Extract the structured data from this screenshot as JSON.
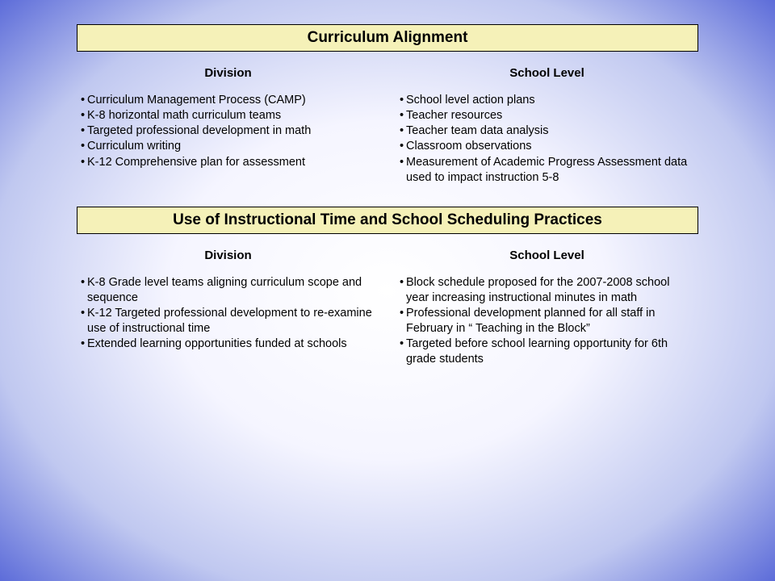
{
  "section1": {
    "title": "Curriculum Alignment",
    "left": {
      "header": "Division",
      "items": [
        "Curriculum Management Process (CAMP)",
        "K-8 horizontal math curriculum teams",
        "Targeted professional development in math",
        "Curriculum writing",
        "K-12 Comprehensive plan for assessment"
      ]
    },
    "right": {
      "header": "School Level",
      "items": [
        "School level action plans",
        "Teacher resources",
        "Teacher team data analysis",
        "Classroom observations",
        "Measurement of Academic Progress Assessment data used to impact instruction 5-8"
      ]
    }
  },
  "section2": {
    "title": "Use of Instructional Time and School Scheduling Practices",
    "left": {
      "header": "Division",
      "items": [
        "K-8 Grade level teams aligning curriculum scope and sequence",
        "K-12 Targeted professional development to re-examine use of instructional time",
        "Extended learning opportunities funded at schools"
      ]
    },
    "right": {
      "header": "School Level",
      "items": [
        "Block schedule proposed for the 2007-2008 school year increasing instructional minutes in math",
        "Professional development planned for all staff in February in “ Teaching in the Block”",
        "Targeted before school learning opportunity for 6th grade students"
      ]
    }
  },
  "colors": {
    "title_bg": "#f5f1b8",
    "title_border": "#000000",
    "text": "#000000"
  }
}
